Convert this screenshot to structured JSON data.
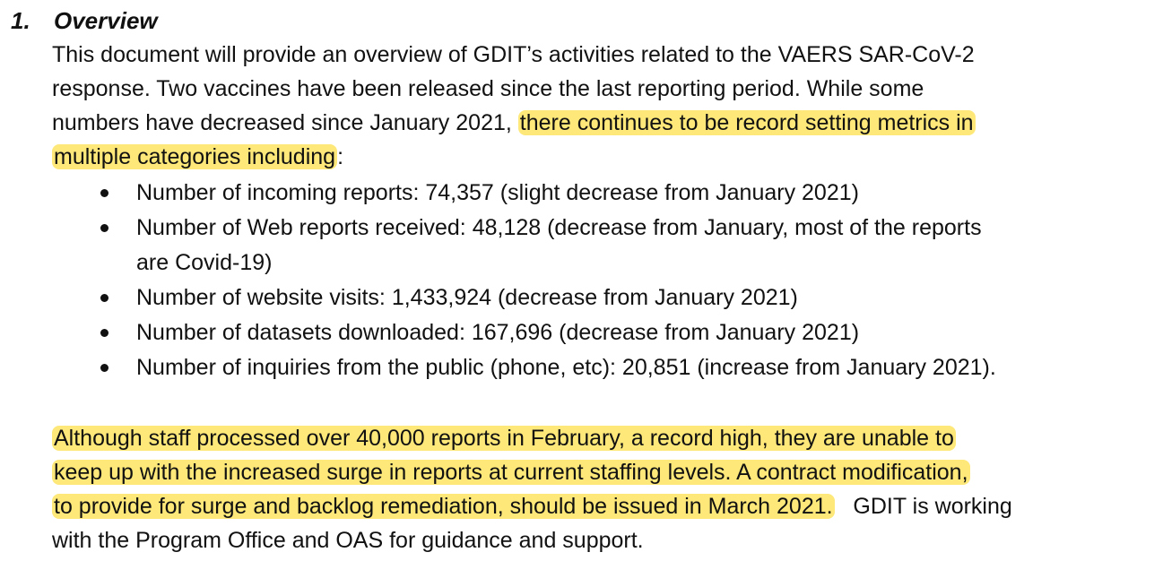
{
  "section": {
    "number": "1.",
    "title": "Overview"
  },
  "intro": {
    "line1": "This document will provide an overview of GDIT’s activities related to the VAERS SAR-CoV-2",
    "line2": "response.  Two vaccines have been released since the last reporting period.  While some",
    "line3_plain": "numbers have decreased since January 2021, ",
    "line3_highlight": "there continues to be record setting metrics in",
    "line4_highlight": "multiple categories including",
    "line4_tail": ":"
  },
  "bullets": [
    {
      "text": "Number of incoming reports: 74,357  (slight decrease from January 2021)"
    },
    {
      "text": "Number of Web reports received:  48,128  (decrease from January, most of the reports",
      "continuation": "are Covid-19)"
    },
    {
      "text": "Number of website visits:  1,433,924  (decrease from January 2021)"
    },
    {
      "text": "Number of datasets downloaded:  167,696  (decrease from January 2021)"
    },
    {
      "text": "Number of inquiries from the public (phone, etc):  20,851  (increase from January 2021)."
    }
  ],
  "closing": {
    "line1_highlight": "Although staff processed over 40,000  reports in February, a record high, they are unable to",
    "line2_highlight": "keep up with the increased surge in reports at current staffing levels.  A contract modification,",
    "line3_highlight": "to provide for surge and backlog remediation, should be issued in March 2021.",
    "line3_plain": "   GDIT is working",
    "line4_plain": "with the Program Office and OAS for guidance and support."
  },
  "colors": {
    "highlight": "#fde879",
    "text": "#111111"
  }
}
